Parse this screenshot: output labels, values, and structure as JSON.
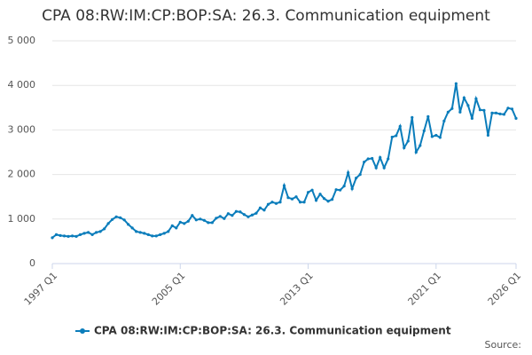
{
  "chart_data": {
    "type": "line",
    "title": "CPA 08:RW:IM:CP:BOP:SA: 26.3. Communication equipment",
    "source": "Source:",
    "categories": [
      "1997 Q1",
      null,
      null,
      null,
      null,
      null,
      null,
      null,
      null,
      null,
      null,
      null,
      null,
      null,
      null,
      null,
      null,
      null,
      null,
      null,
      null,
      null,
      null,
      null,
      null,
      null,
      null,
      null,
      null,
      null,
      null,
      null,
      "2005 Q1",
      null,
      null,
      null,
      null,
      null,
      null,
      null,
      null,
      null,
      null,
      null,
      null,
      null,
      null,
      null,
      null,
      null,
      null,
      null,
      null,
      null,
      null,
      null,
      null,
      null,
      null,
      null,
      null,
      null,
      null,
      null,
      "2013 Q1",
      null,
      null,
      null,
      null,
      null,
      null,
      null,
      null,
      null,
      null,
      null,
      null,
      null,
      null,
      null,
      null,
      null,
      null,
      null,
      null,
      null,
      null,
      null,
      null,
      null,
      null,
      null,
      null,
      null,
      null,
      null,
      "2021 Q1",
      null,
      null,
      null,
      null,
      null,
      null,
      null,
      null,
      null,
      null,
      null,
      null,
      null,
      null,
      null,
      null,
      null,
      null,
      null,
      "2026 Q1"
    ],
    "series": [
      {
        "name": "CPA 08:RW:IM:CP:BOP:SA: 26.3. Communication equipment",
        "color": "#0b7dbb",
        "values": [
          580,
          650,
          630,
          620,
          610,
          620,
          610,
          650,
          680,
          700,
          650,
          700,
          720,
          780,
          900,
          990,
          1050,
          1030,
          980,
          880,
          800,
          720,
          700,
          680,
          650,
          620,
          620,
          650,
          680,
          720,
          850,
          800,
          930,
          900,
          950,
          1080,
          980,
          1000,
          970,
          920,
          920,
          1020,
          1060,
          1010,
          1120,
          1080,
          1170,
          1160,
          1100,
          1050,
          1090,
          1130,
          1250,
          1200,
          1330,
          1380,
          1350,
          1380,
          1750,
          1480,
          1450,
          1500,
          1380,
          1380,
          1600,
          1650,
          1420,
          1560,
          1460,
          1400,
          1440,
          1660,
          1650,
          1740,
          2040,
          1680,
          1920,
          2000,
          2280,
          2350,
          2360,
          2150,
          2380,
          2150,
          2350,
          2840,
          2870,
          3080,
          2600,
          2750,
          3280,
          2500,
          2650,
          2980,
          3300,
          2850,
          2880,
          2830,
          3200,
          3400,
          3480,
          4040,
          3400,
          3720,
          3550,
          3260,
          3700,
          3450,
          3440,
          2880,
          3380,
          3380,
          3360,
          3350,
          3490,
          3470,
          3260
        ]
      }
    ],
    "ylim": [
      0,
      5000
    ],
    "yticks": [
      0,
      {
        "value": 1000,
        "label": "1 000"
      },
      {
        "value": 2000,
        "label": "2 000"
      },
      {
        "value": 3000,
        "label": "3 000"
      },
      {
        "value": 4000,
        "label": "4 000"
      },
      {
        "value": 5000,
        "label": "5 000"
      }
    ],
    "grid": true
  }
}
